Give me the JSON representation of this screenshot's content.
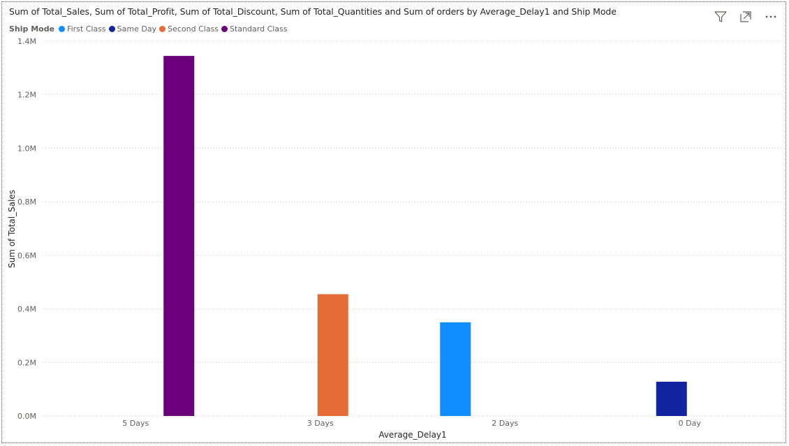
{
  "header": {
    "title": "Sum of Total_Sales, Sum of Total_Profit, Sum of Total_Discount, Sum of Total_Quantities and Sum of orders by Average_Delay1 and Ship Mode"
  },
  "toolbar": {
    "icons": [
      "filter-icon",
      "focus-mode-icon",
      "more-options-icon"
    ]
  },
  "legend": {
    "title": "Ship Mode",
    "items": [
      {
        "label": "First Class",
        "color": "#118dff"
      },
      {
        "label": "Same Day",
        "color": "#12239e"
      },
      {
        "label": "Second Class",
        "color": "#e66c37"
      },
      {
        "label": "Standard Class",
        "color": "#6b007b"
      }
    ]
  },
  "chart_data": {
    "type": "bar",
    "title": "Sum of Total_Sales, Sum of Total_Profit, Sum of Total_Discount, Sum of Total_Quantities and Sum of orders by Average_Delay1 and Ship Mode",
    "xlabel": "Average_Delay1",
    "ylabel": "Sum of Total_Sales",
    "categories": [
      "5 Days",
      "3 Days",
      "2 Days",
      "0 Day"
    ],
    "ylim": [
      0,
      1400000
    ],
    "yticks": [
      0,
      200000,
      400000,
      600000,
      800000,
      1000000,
      1200000,
      1400000
    ],
    "ytick_labels": [
      "0.0M",
      "0.2M",
      "0.4M",
      "0.6M",
      "0.8M",
      "1.0M",
      "1.2M",
      "1.4M"
    ],
    "grid": true,
    "legend_position": "top-left",
    "series": [
      {
        "name": "First Class",
        "color": "#118dff",
        "values": [
          null,
          null,
          350000,
          null
        ]
      },
      {
        "name": "Same Day",
        "color": "#12239e",
        "values": [
          null,
          null,
          null,
          128000
        ]
      },
      {
        "name": "Second Class",
        "color": "#e66c37",
        "values": [
          null,
          455000,
          null,
          null
        ]
      },
      {
        "name": "Standard Class",
        "color": "#6b007b",
        "values": [
          1345000,
          null,
          null,
          null
        ]
      }
    ]
  }
}
